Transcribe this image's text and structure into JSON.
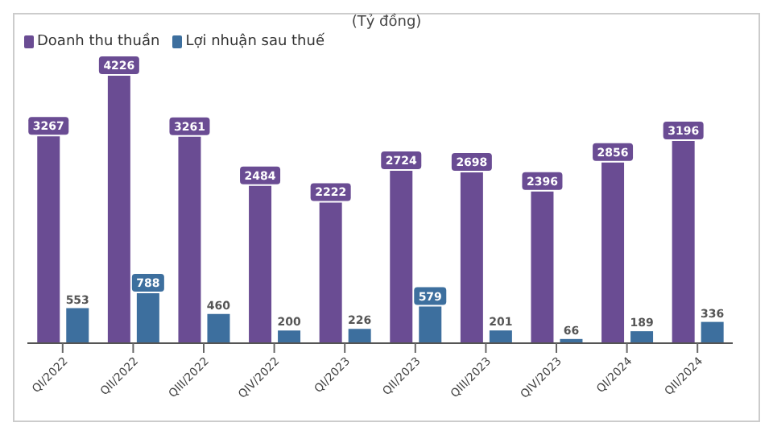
{
  "chart_data": {
    "type": "bar",
    "title": "(Tỷ đồng)",
    "categories": [
      "QI/2022",
      "QII/2022",
      "QIII/2022",
      "QIV/2022",
      "QI/2023",
      "QII/2023",
      "QIII/2023",
      "QIV/2023",
      "QI/2024",
      "QII/2024"
    ],
    "series": [
      {
        "name": "Doanh thu thuần",
        "color": "#6a4c93",
        "values": [
          3267,
          4226,
          3261,
          2484,
          2222,
          2724,
          2698,
          2396,
          2856,
          3196
        ]
      },
      {
        "name": "Lợi nhuận sau thuế",
        "color": "#3d6f9e",
        "values": [
          553,
          788,
          460,
          200,
          226,
          579,
          201,
          66,
          189,
          336
        ]
      }
    ],
    "data_labels": true,
    "legend": "top left"
  }
}
